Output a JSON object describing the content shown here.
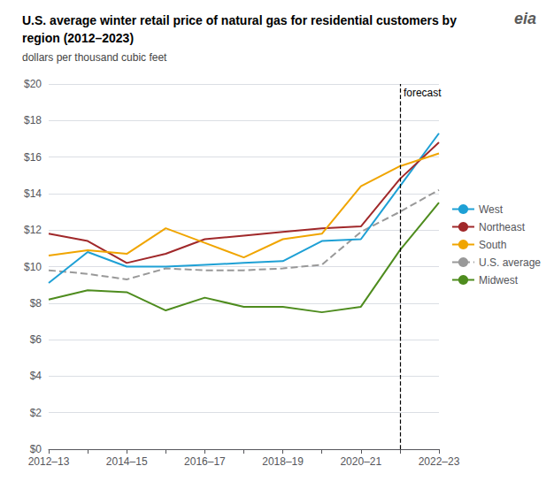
{
  "chart_data": {
    "type": "line",
    "title": "U.S. average winter retail price of natural gas for residential customers by region (2012–2023)",
    "subtitle": "dollars per thousand cubic feet",
    "categories": [
      "2012–13",
      null,
      "2014–15",
      null,
      "2016–17",
      null,
      "2018–19",
      null,
      "2020–21",
      null,
      "2022–23"
    ],
    "series": [
      {
        "name": "West",
        "color": "#1EA0D5",
        "line_style": "solid",
        "values": [
          9.1,
          10.8,
          10.0,
          10.0,
          10.1,
          10.2,
          10.3,
          11.4,
          11.5,
          14.4,
          17.3
        ]
      },
      {
        "name": "Northeast",
        "color": "#A0282A",
        "line_style": "solid",
        "values": [
          11.8,
          11.4,
          10.2,
          10.7,
          11.5,
          11.7,
          11.9,
          12.1,
          12.2,
          14.8,
          16.8
        ]
      },
      {
        "name": "South",
        "color": "#F0A500",
        "line_style": "solid",
        "values": [
          10.6,
          10.9,
          10.7,
          12.1,
          11.3,
          10.5,
          11.5,
          11.8,
          14.4,
          15.5,
          16.2
        ]
      },
      {
        "name": "U.S. average",
        "color": "#999999",
        "line_style": "dashed",
        "values": [
          9.8,
          9.6,
          9.3,
          9.9,
          9.8,
          9.8,
          9.9,
          10.1,
          11.9,
          13.0,
          14.2
        ]
      },
      {
        "name": "Midwest",
        "color": "#4E8C1E",
        "line_style": "solid",
        "values": [
          8.2,
          8.7,
          8.6,
          7.6,
          8.3,
          7.8,
          7.8,
          7.5,
          7.8,
          10.9,
          13.5
        ]
      }
    ],
    "ylim": [
      0,
      20
    ],
    "yticks": [
      {
        "value": 0,
        "label": "$0"
      },
      {
        "value": 2,
        "label": "$2"
      },
      {
        "value": 4,
        "label": "$4"
      },
      {
        "value": 6,
        "label": "$6"
      },
      {
        "value": 8,
        "label": "$8"
      },
      {
        "value": 10,
        "label": "$10"
      },
      {
        "value": 12,
        "label": "$12"
      },
      {
        "value": 14,
        "label": "$14"
      },
      {
        "value": 16,
        "label": "$16"
      },
      {
        "value": 18,
        "label": "$18"
      },
      {
        "value": 20,
        "label": "$20"
      }
    ],
    "grid": true,
    "legend": "right",
    "annotations": [
      {
        "text": "forecast",
        "x": 9,
        "y": 19.5
      },
      {
        "text": "eia"
      }
    ]
  }
}
